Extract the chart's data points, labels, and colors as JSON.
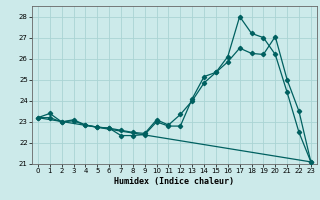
{
  "xlabel": "Humidex (Indice chaleur)",
  "background_color": "#cceaea",
  "grid_color": "#aad4d4",
  "line_color": "#006060",
  "xlim": [
    -0.5,
    23.5
  ],
  "ylim": [
    21,
    28.5
  ],
  "yticks": [
    21,
    22,
    23,
    24,
    25,
    26,
    27,
    28
  ],
  "xticks": [
    0,
    1,
    2,
    3,
    4,
    5,
    6,
    7,
    8,
    9,
    10,
    11,
    12,
    13,
    14,
    15,
    16,
    17,
    18,
    19,
    20,
    21,
    22,
    23
  ],
  "series1_x": [
    0,
    1,
    2,
    3,
    4,
    5,
    6,
    7,
    8,
    9,
    10,
    11,
    12,
    13,
    14,
    15,
    16,
    17,
    18,
    19,
    20,
    21,
    22,
    23
  ],
  "series1_y": [
    23.2,
    23.4,
    23.0,
    23.1,
    22.85,
    22.75,
    22.7,
    22.35,
    22.35,
    22.4,
    23.0,
    22.8,
    22.8,
    24.1,
    25.15,
    25.35,
    26.1,
    28.0,
    27.2,
    27.0,
    26.2,
    24.4,
    22.5,
    21.1
  ],
  "series2_x": [
    0,
    1,
    2,
    3,
    4,
    5,
    6,
    7,
    8,
    9,
    10,
    11,
    12,
    13,
    14,
    15,
    16,
    17,
    18,
    19,
    20,
    21,
    22,
    23
  ],
  "series2_y": [
    23.2,
    23.2,
    23.0,
    23.05,
    22.85,
    22.75,
    22.7,
    22.6,
    22.5,
    22.45,
    23.1,
    22.85,
    23.35,
    24.0,
    24.85,
    25.35,
    25.85,
    26.5,
    26.25,
    26.2,
    27.05,
    25.0,
    23.5,
    21.1
  ],
  "series3_x": [
    0,
    23
  ],
  "series3_y": [
    23.2,
    21.1
  ]
}
